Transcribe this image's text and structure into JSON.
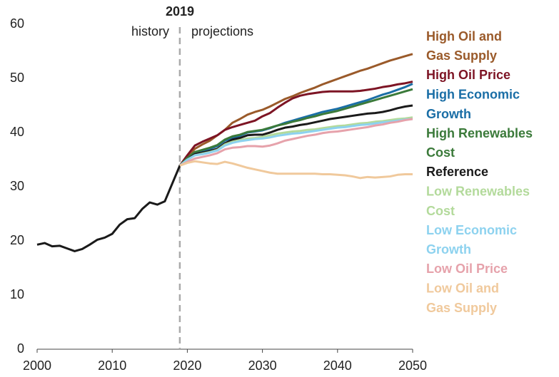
{
  "chart_data": {
    "type": "line",
    "xlim": [
      2000,
      2050
    ],
    "xticks": [
      2000,
      2010,
      2020,
      2030,
      2040,
      2050
    ],
    "ylim": [
      0,
      60
    ],
    "yticks": [
      0,
      10,
      20,
      30,
      40,
      50,
      60
    ],
    "grid": false,
    "annotations": {
      "divider": {
        "x": 2019,
        "label": "2019"
      },
      "left": "history",
      "right": "projections"
    },
    "x": [
      2000,
      2001,
      2002,
      2003,
      2004,
      2005,
      2006,
      2007,
      2008,
      2009,
      2010,
      2011,
      2012,
      2013,
      2014,
      2015,
      2016,
      2017,
      2018,
      2019,
      2020,
      2021,
      2022,
      2023,
      2024,
      2025,
      2026,
      2027,
      2028,
      2029,
      2030,
      2031,
      2032,
      2033,
      2034,
      2035,
      2036,
      2037,
      2038,
      2039,
      2040,
      2041,
      2042,
      2043,
      2044,
      2045,
      2046,
      2047,
      2048,
      2049,
      2050
    ],
    "series": [
      {
        "name": "High Oil and Gas Supply",
        "color": "#9a5a2a",
        "values": [
          null,
          null,
          null,
          null,
          null,
          null,
          null,
          null,
          null,
          null,
          null,
          null,
          null,
          null,
          null,
          null,
          null,
          null,
          null,
          33.9,
          35.5,
          37.0,
          37.8,
          38.5,
          39.5,
          40.5,
          41.8,
          42.5,
          43.3,
          43.8,
          44.2,
          44.8,
          45.5,
          46.2,
          46.7,
          47.3,
          47.8,
          48.3,
          48.9,
          49.4,
          49.9,
          50.4,
          50.9,
          51.4,
          51.8,
          52.3,
          52.8,
          53.3,
          53.7,
          54.1,
          54.5
        ]
      },
      {
        "name": "High Oil Price",
        "color": "#7d1424",
        "values": [
          null,
          null,
          null,
          null,
          null,
          null,
          null,
          null,
          null,
          null,
          null,
          null,
          null,
          null,
          null,
          null,
          null,
          null,
          null,
          33.9,
          35.8,
          37.6,
          38.3,
          38.9,
          39.5,
          40.5,
          41.0,
          41.4,
          41.8,
          42.2,
          43.0,
          43.6,
          44.6,
          45.5,
          46.3,
          46.8,
          47.1,
          47.3,
          47.5,
          47.6,
          47.6,
          47.6,
          47.6,
          47.7,
          47.9,
          48.1,
          48.4,
          48.6,
          48.9,
          49.1,
          49.4
        ]
      },
      {
        "name": "High Economic Growth",
        "color": "#1a6ea6",
        "values": [
          null,
          null,
          null,
          null,
          null,
          null,
          null,
          null,
          null,
          null,
          null,
          null,
          null,
          null,
          null,
          null,
          null,
          null,
          null,
          33.9,
          35.2,
          36.2,
          36.6,
          37.0,
          37.5,
          38.5,
          39.0,
          39.4,
          40.0,
          40.2,
          40.4,
          40.8,
          41.3,
          41.8,
          42.2,
          42.6,
          43.0,
          43.4,
          43.8,
          44.1,
          44.4,
          44.8,
          45.2,
          45.6,
          46.0,
          46.5,
          47.0,
          47.4,
          47.9,
          48.4,
          49.0
        ]
      },
      {
        "name": "High Renewables Cost",
        "color": "#3b7a3a",
        "values": [
          null,
          null,
          null,
          null,
          null,
          null,
          null,
          null,
          null,
          null,
          null,
          null,
          null,
          null,
          null,
          null,
          null,
          null,
          null,
          33.9,
          35.3,
          36.4,
          36.8,
          37.2,
          37.7,
          38.7,
          39.3,
          39.6,
          40.1,
          40.3,
          40.5,
          40.9,
          41.3,
          41.6,
          42.0,
          42.3,
          42.7,
          43.0,
          43.4,
          43.7,
          44.0,
          44.4,
          44.8,
          45.2,
          45.6,
          46.0,
          46.4,
          46.8,
          47.2,
          47.6,
          48.0
        ]
      },
      {
        "name": "Reference",
        "color": "#1a1a1a",
        "values": [
          19.3,
          19.6,
          19.0,
          19.1,
          18.6,
          18.1,
          18.5,
          19.3,
          20.2,
          20.6,
          21.3,
          23.0,
          24.0,
          24.2,
          25.9,
          27.1,
          26.7,
          27.3,
          30.6,
          33.9,
          35.0,
          36.0,
          36.3,
          36.6,
          37.0,
          38.0,
          38.7,
          39.0,
          39.5,
          39.6,
          39.6,
          40.0,
          40.5,
          40.9,
          41.1,
          41.4,
          41.6,
          41.9,
          42.2,
          42.5,
          42.7,
          42.9,
          43.1,
          43.3,
          43.5,
          43.6,
          43.8,
          44.1,
          44.5,
          44.8,
          45.0
        ]
      },
      {
        "name": "Low Renewables Cost",
        "color": "#b3da9b",
        "values": [
          null,
          null,
          null,
          null,
          null,
          null,
          null,
          null,
          null,
          null,
          null,
          null,
          null,
          null,
          null,
          null,
          null,
          null,
          null,
          33.9,
          35.0,
          35.8,
          36.1,
          36.4,
          36.8,
          37.8,
          38.3,
          38.6,
          38.9,
          39.0,
          39.2,
          39.5,
          39.8,
          40.0,
          40.2,
          40.3,
          40.5,
          40.6,
          40.8,
          41.0,
          41.2,
          41.3,
          41.5,
          41.7,
          41.8,
          42.0,
          42.1,
          42.3,
          42.5,
          42.6,
          42.8
        ]
      },
      {
        "name": "Low Economic Growth",
        "color": "#8dd2ef",
        "values": [
          null,
          null,
          null,
          null,
          null,
          null,
          null,
          null,
          null,
          null,
          null,
          null,
          null,
          null,
          null,
          null,
          null,
          null,
          null,
          33.9,
          35.0,
          35.8,
          36.0,
          36.3,
          36.7,
          37.6,
          38.1,
          38.4,
          38.6,
          38.8,
          38.9,
          39.1,
          39.4,
          39.6,
          39.8,
          39.9,
          40.1,
          40.3,
          40.5,
          40.7,
          40.9,
          41.0,
          41.2,
          41.4,
          41.5,
          41.7,
          41.9,
          42.0,
          42.2,
          42.4,
          42.5
        ]
      },
      {
        "name": "Low Oil Price",
        "color": "#e6a2ab",
        "values": [
          null,
          null,
          null,
          null,
          null,
          null,
          null,
          null,
          null,
          null,
          null,
          null,
          null,
          null,
          null,
          null,
          null,
          null,
          null,
          33.9,
          34.6,
          35.2,
          35.5,
          35.8,
          36.2,
          36.9,
          37.2,
          37.3,
          37.5,
          37.5,
          37.4,
          37.6,
          38.0,
          38.5,
          38.8,
          39.1,
          39.4,
          39.6,
          39.9,
          40.1,
          40.2,
          40.4,
          40.6,
          40.8,
          41.0,
          41.3,
          41.5,
          41.8,
          42.0,
          42.3,
          42.5
        ]
      },
      {
        "name": "Low Oil and Gas Supply",
        "color": "#f0c99c",
        "values": [
          null,
          null,
          null,
          null,
          null,
          null,
          null,
          null,
          null,
          null,
          null,
          null,
          null,
          null,
          null,
          null,
          null,
          null,
          null,
          33.9,
          34.4,
          34.7,
          34.5,
          34.3,
          34.2,
          34.6,
          34.3,
          33.9,
          33.5,
          33.2,
          32.9,
          32.6,
          32.4,
          32.4,
          32.4,
          32.4,
          32.4,
          32.4,
          32.3,
          32.3,
          32.2,
          32.1,
          31.9,
          31.6,
          31.8,
          31.7,
          31.8,
          31.9,
          32.2,
          32.3,
          32.3
        ]
      }
    ]
  }
}
